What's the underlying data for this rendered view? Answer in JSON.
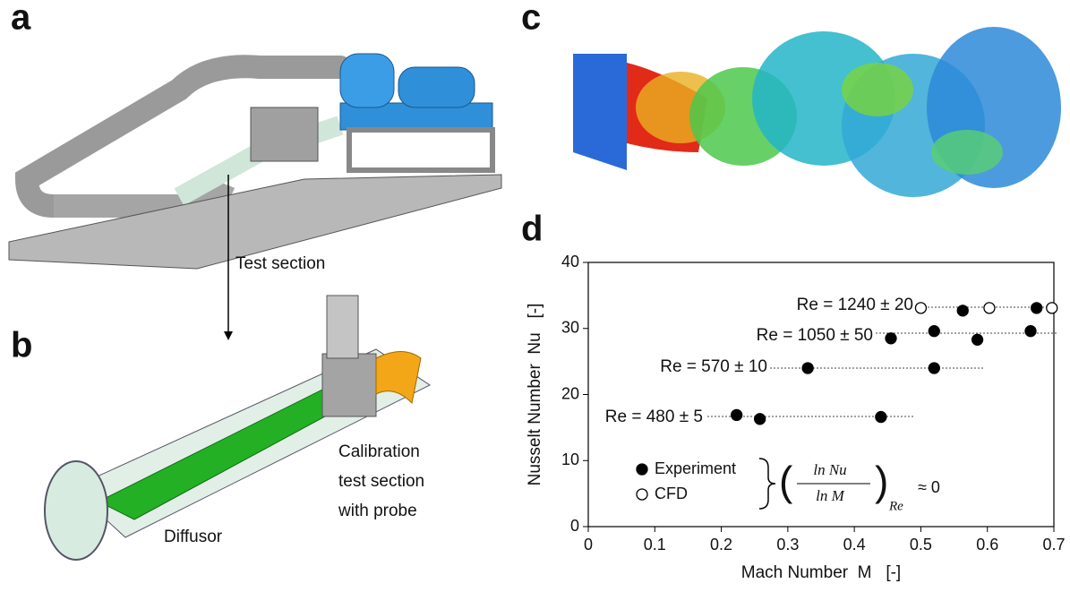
{
  "panels": [
    {
      "label": "a",
      "texts": [
        "Test section"
      ]
    },
    {
      "label": "b",
      "texts": [
        "Calibration",
        "test section",
        "with probe",
        "Diffusor"
      ]
    },
    {
      "label": "c"
    },
    {
      "label": "d"
    }
  ],
  "chart_data": {
    "type": "scatter",
    "xlabel": "Mach Number  M   [-]",
    "ylabel": "Nusselt Number  Nu   [-]",
    "xlim": [
      0,
      0.7
    ],
    "ylim": [
      0,
      40
    ],
    "xticks": [
      0,
      0.1,
      0.2,
      0.3,
      0.4,
      0.5,
      0.6,
      0.7
    ],
    "yticks": [
      0,
      10,
      20,
      30,
      40
    ],
    "series": [
      {
        "name": "Experiment",
        "color": "#000000",
        "marker": "filled",
        "x": [
          0.563,
          0.674,
          0.455,
          0.52,
          0.585,
          0.665,
          0.33,
          0.52,
          0.223,
          0.258,
          0.44
        ],
        "y": [
          32.7,
          33.1,
          28.5,
          29.6,
          28.3,
          29.6,
          24.0,
          24.0,
          16.9,
          16.3,
          16.6
        ]
      },
      {
        "name": "CFD",
        "color": "#000000",
        "marker": "open",
        "x": [
          0.5,
          0.603,
          0.697
        ],
        "y": [
          33.1,
          33.1,
          33.1
        ]
      }
    ],
    "annotations": [
      "Re = 1240 ± 20",
      "Re = 1050 ± 50",
      "Re = 570 ± 10",
      "Re = 480 ± 5"
    ],
    "equation": {
      "numerator": "ln Nu",
      "denominator": "ln M",
      "subscript": "Re",
      "relation": "≈ 0"
    }
  }
}
